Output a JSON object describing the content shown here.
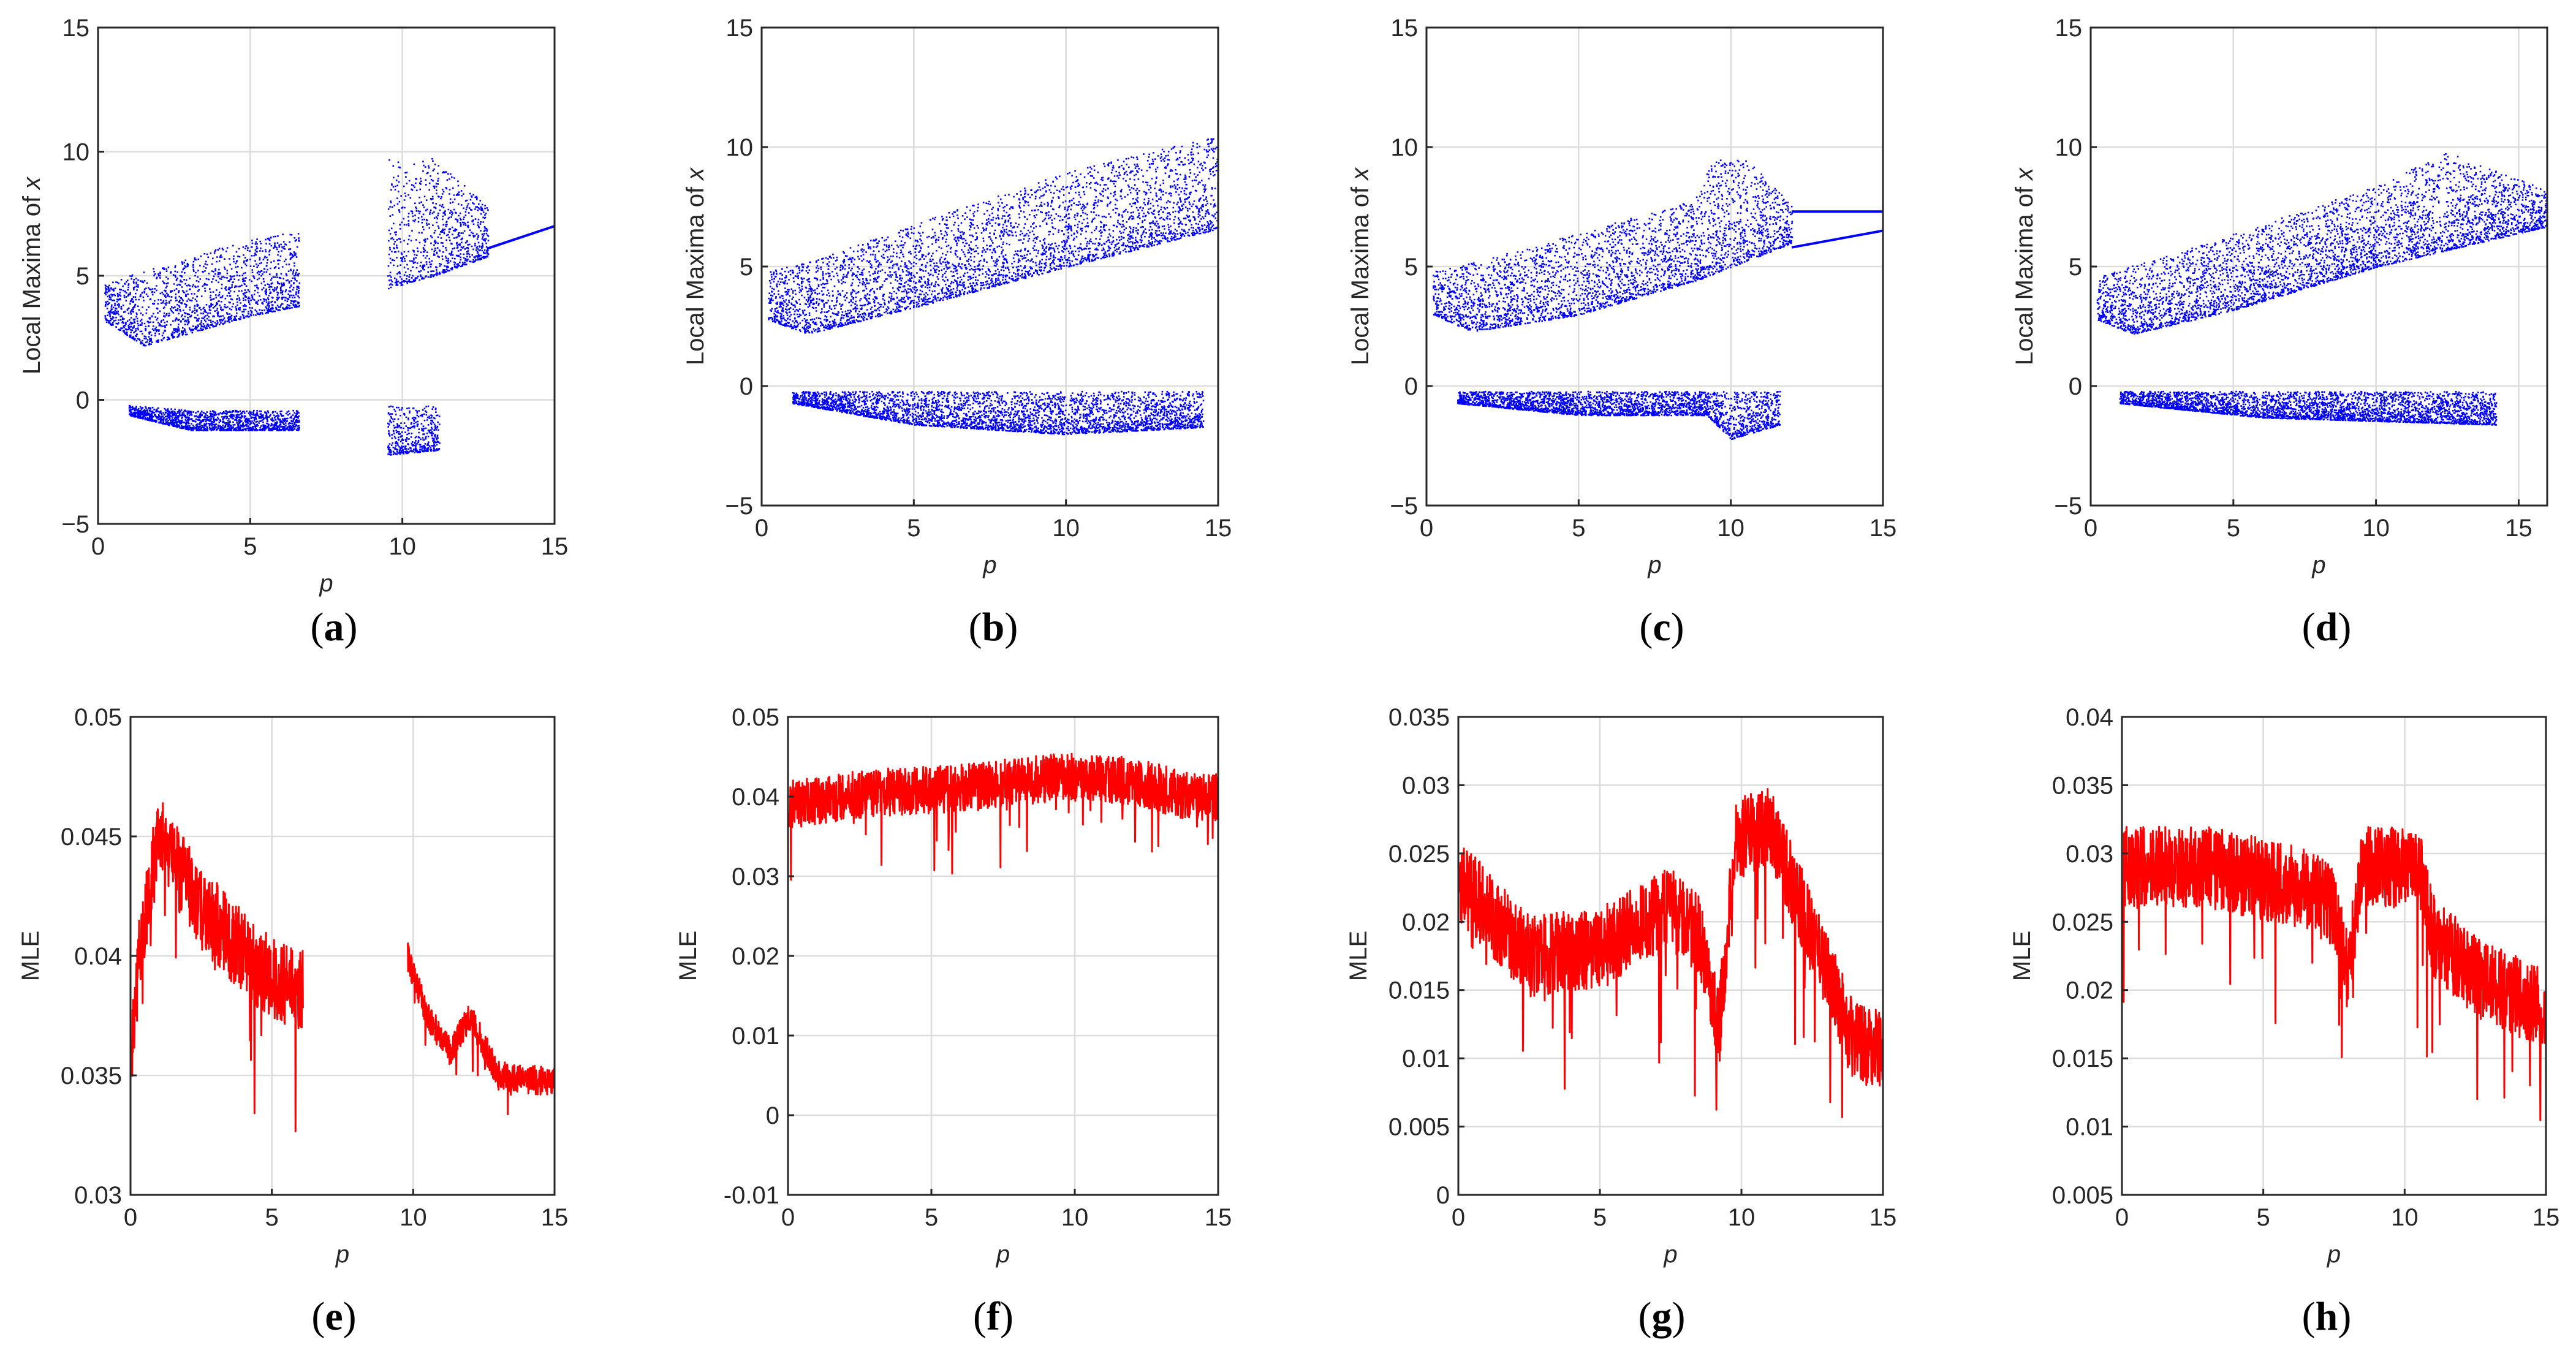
{
  "figure": {
    "colors": {
      "bifurcation": "#0000ff",
      "mle": "#ff0000",
      "grid": "#dcdcdc",
      "axis": "#262626"
    }
  },
  "chart_data": [
    {
      "id": "a",
      "type": "scatter",
      "label": "a",
      "xlabel": "p",
      "ylabel": "Local Maxima of x",
      "xlim": [
        0,
        15
      ],
      "ylim": [
        -5,
        15
      ],
      "xticks": [
        0,
        5,
        10,
        15
      ],
      "yticks": [
        -5,
        0,
        5,
        10,
        15
      ],
      "xtick_labels": [
        "0",
        "5",
        "10",
        "15"
      ],
      "ytick_labels": [
        "−5",
        "0",
        "5",
        "10",
        "15"
      ],
      "grid": true,
      "series": [
        {
          "name": "upper branch",
          "x_range": [
            0.2,
            6.6
          ],
          "lower_edge": [
            [
              0.2,
              3.2
            ],
            [
              1.5,
              2.2
            ],
            [
              3,
              2.7
            ],
            [
              5,
              3.4
            ],
            [
              6.6,
              3.8
            ]
          ],
          "upper_edge": [
            [
              0.2,
              4.8
            ],
            [
              1.5,
              5.2
            ],
            [
              3,
              5.8
            ],
            [
              5,
              6.5
            ],
            [
              6.6,
              6.8
            ]
          ]
        },
        {
          "name": "lower branch",
          "x_range": [
            1.0,
            6.6
          ],
          "lower_edge": [
            [
              1,
              -0.6
            ],
            [
              3,
              -1.2
            ],
            [
              6.6,
              -1.2
            ]
          ],
          "upper_edge": [
            [
              1,
              -0.2
            ],
            [
              3,
              -0.4
            ],
            [
              6.6,
              -0.4
            ]
          ]
        },
        {
          "name": "upper branch",
          "x_range": [
            9.5,
            12.8
          ],
          "lower_edge": [
            [
              9.5,
              4.5
            ],
            [
              11,
              5
            ],
            [
              12.8,
              5.8
            ]
          ],
          "upper_edge": [
            [
              9.5,
              9.8
            ],
            [
              11,
              9.8
            ],
            [
              12.8,
              7.8
            ]
          ]
        },
        {
          "name": "lower branch",
          "x_range": [
            9.5,
            11.2
          ],
          "lower_edge": [
            [
              9.5,
              -2.2
            ],
            [
              11.2,
              -2
            ]
          ],
          "upper_edge": [
            [
              9.5,
              -0.2
            ],
            [
              11.2,
              -0.2
            ]
          ]
        },
        {
          "name": "periodic line",
          "points": [
            [
              12.8,
              6.1
            ],
            [
              15,
              7.0
            ]
          ]
        }
      ]
    },
    {
      "id": "b",
      "type": "scatter",
      "label": "b",
      "xlabel": "p",
      "ylabel": "Local Maxima of x",
      "xlim": [
        0,
        15
      ],
      "ylim": [
        -5,
        15
      ],
      "xticks": [
        0,
        5,
        10,
        15
      ],
      "yticks": [
        -5,
        0,
        5,
        10,
        15
      ],
      "xtick_labels": [
        "0",
        "5",
        "10",
        "15"
      ],
      "ytick_labels": [
        "−5",
        "0",
        "5",
        "10",
        "15"
      ],
      "grid": true,
      "series": [
        {
          "name": "upper branch",
          "x_range": [
            0.2,
            15
          ],
          "lower_edge": [
            [
              0.2,
              2.8
            ],
            [
              1.5,
              2.2
            ],
            [
              5,
              3.3
            ],
            [
              10,
              5.0
            ],
            [
              15,
              6.6
            ]
          ],
          "upper_edge": [
            [
              0.2,
              4.8
            ],
            [
              2,
              5.4
            ],
            [
              5,
              6.8
            ],
            [
              10,
              9.0
            ],
            [
              15,
              10.5
            ]
          ]
        },
        {
          "name": "lower branch",
          "x_range": [
            1.0,
            14.5
          ],
          "lower_edge": [
            [
              1,
              -0.7
            ],
            [
              5,
              -1.6
            ],
            [
              10,
              -2.0
            ],
            [
              14.5,
              -1.7
            ]
          ],
          "upper_edge": [
            [
              1,
              -0.2
            ],
            [
              14.5,
              -0.2
            ]
          ]
        }
      ]
    },
    {
      "id": "c",
      "type": "scatter",
      "label": "c",
      "xlabel": "p",
      "ylabel": "Local Maxima of x",
      "xlim": [
        0,
        15
      ],
      "ylim": [
        -5,
        15
      ],
      "xticks": [
        0,
        5,
        10,
        15
      ],
      "yticks": [
        -5,
        0,
        5,
        10,
        15
      ],
      "xtick_labels": [
        "0",
        "5",
        "10",
        "15"
      ],
      "ytick_labels": [
        "−5",
        "0",
        "5",
        "10",
        "15"
      ],
      "grid": true,
      "series": [
        {
          "name": "upper branch",
          "x_range": [
            0.2,
            12
          ],
          "lower_edge": [
            [
              0.2,
              3.0
            ],
            [
              1.5,
              2.3
            ],
            [
              5,
              3.0
            ],
            [
              9,
              4.5
            ],
            [
              12,
              6.0
            ]
          ],
          "upper_edge": [
            [
              0.2,
              4.8
            ],
            [
              3,
              5.7
            ],
            [
              6,
              6.8
            ],
            [
              8.8,
              7.8
            ],
            [
              9.4,
              9.5
            ],
            [
              10.5,
              9.5
            ],
            [
              12,
              7.6
            ]
          ]
        },
        {
          "name": "lower branch",
          "x_range": [
            1.0,
            11.6
          ],
          "lower_edge": [
            [
              1,
              -0.7
            ],
            [
              5,
              -1.2
            ],
            [
              9.2,
              -1.2
            ],
            [
              10,
              -2.2
            ],
            [
              11.6,
              -1.6
            ]
          ],
          "upper_edge": [
            [
              1,
              -0.2
            ],
            [
              11.6,
              -0.2
            ]
          ]
        },
        {
          "name": "periodic upper",
          "points": [
            [
              12,
              7.3
            ],
            [
              15,
              7.3
            ]
          ]
        },
        {
          "name": "periodic lower",
          "points": [
            [
              12,
              5.8
            ],
            [
              15,
              6.5
            ]
          ]
        }
      ]
    },
    {
      "id": "d",
      "type": "scatter",
      "label": "d",
      "xlabel": "p",
      "ylabel": "Local Maxima of x",
      "xlim": [
        0,
        16
      ],
      "ylim": [
        -5,
        15
      ],
      "xticks": [
        0,
        5,
        10,
        15
      ],
      "yticks": [
        -5,
        0,
        5,
        10,
        15
      ],
      "xtick_labels": [
        "0",
        "5",
        "10",
        "15"
      ],
      "ytick_labels": [
        "−5",
        "0",
        "5",
        "10",
        "15"
      ],
      "grid": true,
      "series": [
        {
          "name": "upper branch",
          "x_range": [
            0.2,
            16
          ],
          "lower_edge": [
            [
              0.2,
              2.8
            ],
            [
              1.5,
              2.2
            ],
            [
              5,
              3.2
            ],
            [
              10,
              5.0
            ],
            [
              16,
              6.7
            ]
          ],
          "upper_edge": [
            [
              0.2,
              4.6
            ],
            [
              3,
              5.6
            ],
            [
              6,
              6.8
            ],
            [
              10,
              8.4
            ],
            [
              12.5,
              9.8
            ],
            [
              16,
              8.2
            ]
          ]
        },
        {
          "name": "lower branch",
          "x_range": [
            1.0,
            14.2
          ],
          "lower_edge": [
            [
              1,
              -0.7
            ],
            [
              6,
              -1.3
            ],
            [
              14.2,
              -1.6
            ]
          ],
          "upper_edge": [
            [
              1,
              -0.2
            ],
            [
              14.2,
              -0.2
            ]
          ]
        }
      ]
    },
    {
      "id": "e",
      "type": "line",
      "label": "e",
      "xlabel": "p",
      "ylabel": "MLE",
      "xlim": [
        0,
        15
      ],
      "ylim": [
        0.03,
        0.05
      ],
      "xticks": [
        0,
        5,
        10,
        15
      ],
      "yticks": [
        0.03,
        0.035,
        0.04,
        0.045,
        0.05
      ],
      "xtick_labels": [
        "0",
        "5",
        "10",
        "15"
      ],
      "ytick_labels": [
        "0.03",
        "0.035",
        "0.04",
        "0.045",
        "0.05"
      ],
      "grid": true,
      "series": [
        {
          "name": "MLE",
          "segments": [
            {
              "x_range": [
                0.05,
                6.1
              ],
              "trend": [
                [
                  0.05,
                  0.0365
                ],
                [
                  0.4,
                  0.041
                ],
                [
                  1.0,
                  0.045
                ],
                [
                  2.5,
                  0.042
                ],
                [
                  4.5,
                  0.0395
                ],
                [
                  6.1,
                  0.0385
                ]
              ],
              "spread": 0.0035
            },
            {
              "x_range": [
                9.8,
                15
              ],
              "trend": [
                [
                  9.8,
                  0.04
                ],
                [
                  10.5,
                  0.0375
                ],
                [
                  11.3,
                  0.036
                ],
                [
                  12,
                  0.0375
                ],
                [
                  13,
                  0.035
                ],
                [
                  15,
                  0.0347
                ]
              ],
              "spread": 0.0012
            }
          ]
        }
      ]
    },
    {
      "id": "f",
      "type": "line",
      "label": "f",
      "xlabel": "p",
      "ylabel": "MLE",
      "xlim": [
        0,
        15
      ],
      "ylim": [
        -0.01,
        0.05
      ],
      "xticks": [
        0,
        5,
        10,
        15
      ],
      "yticks": [
        -0.01,
        0,
        0.01,
        0.02,
        0.03,
        0.04,
        0.05
      ],
      "xtick_labels": [
        "0",
        "5",
        "10",
        "15"
      ],
      "ytick_labels": [
        "-0.01",
        "0",
        "0.01",
        "0.02",
        "0.03",
        "0.04",
        "0.05"
      ],
      "grid": true,
      "series": [
        {
          "name": "MLE",
          "segments": [
            {
              "x_range": [
                0.05,
                15
              ],
              "trend": [
                [
                  0.05,
                  0.039
                ],
                [
                  3,
                  0.0405
                ],
                [
                  6,
                  0.041
                ],
                [
                  9.5,
                  0.0425
                ],
                [
                  12,
                  0.042
                ],
                [
                  14,
                  0.04
                ],
                [
                  15,
                  0.04
                ]
              ],
              "spread": 0.006
            }
          ]
        }
      ]
    },
    {
      "id": "g",
      "type": "line",
      "label": "g",
      "xlabel": "p",
      "ylabel": "MLE",
      "xlim": [
        0,
        15
      ],
      "ylim": [
        0,
        0.035
      ],
      "xticks": [
        0,
        5,
        10,
        15
      ],
      "yticks": [
        0,
        0.005,
        0.01,
        0.015,
        0.02,
        0.025,
        0.03,
        0.035
      ],
      "xtick_labels": [
        "0",
        "5",
        "10",
        "15"
      ],
      "ytick_labels": [
        "0",
        "0.005",
        "0.01",
        "0.015",
        "0.02",
        "0.025",
        "0.03",
        "0.035"
      ],
      "grid": true,
      "series": [
        {
          "name": "MLE",
          "segments": [
            {
              "x_range": [
                0.05,
                15
              ],
              "trend": [
                [
                  0.05,
                  0.023
                ],
                [
                  2.5,
                  0.0175
                ],
                [
                  5,
                  0.018
                ],
                [
                  7.5,
                  0.021
                ],
                [
                  8.5,
                  0.019
                ],
                [
                  9.2,
                  0.012
                ],
                [
                  9.8,
                  0.026
                ],
                [
                  11,
                  0.027
                ],
                [
                  12.5,
                  0.019
                ],
                [
                  14,
                  0.011
                ],
                [
                  15,
                  0.011
                ]
              ],
              "spread": 0.006
            }
          ]
        }
      ]
    },
    {
      "id": "h",
      "type": "line",
      "label": "h",
      "xlabel": "p",
      "ylabel": "MLE",
      "xlim": [
        0,
        15
      ],
      "ylim": [
        0.005,
        0.04
      ],
      "xticks": [
        0,
        5,
        10,
        15
      ],
      "yticks": [
        0.005,
        0.01,
        0.015,
        0.02,
        0.025,
        0.03,
        0.035,
        0.04
      ],
      "xtick_labels": [
        "0",
        "5",
        "10",
        "15"
      ],
      "ytick_labels": [
        "0.005",
        "0.01",
        "0.015",
        "0.02",
        "0.025",
        "0.03",
        "0.035",
        "0.04"
      ],
      "grid": true,
      "series": [
        {
          "name": "MLE",
          "segments": [
            {
              "x_range": [
                0.05,
                15
              ],
              "trend": [
                [
                  0.05,
                  0.029
                ],
                [
                  3,
                  0.029
                ],
                [
                  6.5,
                  0.0275
                ],
                [
                  7.5,
                  0.026
                ],
                [
                  8,
                  0.021
                ],
                [
                  8.5,
                  0.029
                ],
                [
                  10.5,
                  0.029
                ],
                [
                  11,
                  0.024
                ],
                [
                  12.5,
                  0.021
                ],
                [
                  15,
                  0.0185
                ]
              ],
              "spread": 0.006
            }
          ]
        }
      ]
    }
  ]
}
